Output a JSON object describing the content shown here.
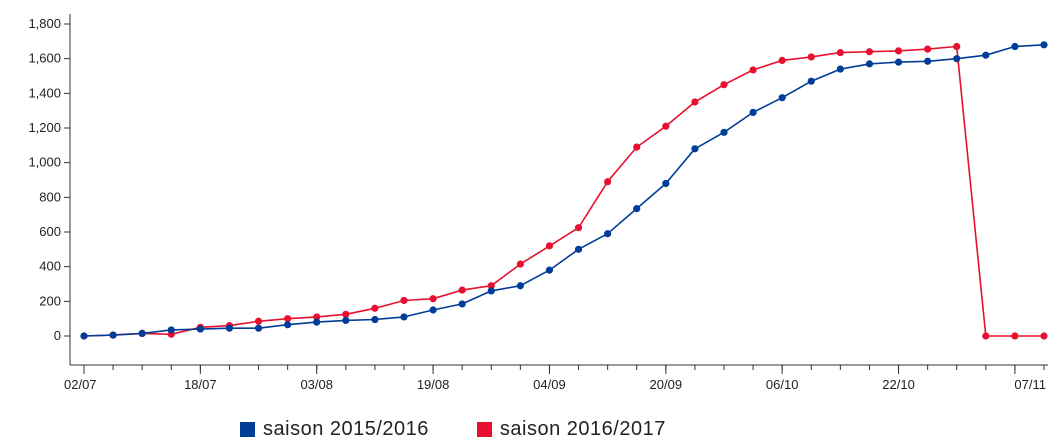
{
  "chart_data": {
    "type": "line",
    "x_tick_labels": [
      "02/07",
      "18/07",
      "03/08",
      "19/08",
      "04/09",
      "20/09",
      "06/10",
      "22/10",
      "07/11"
    ],
    "y_tick_labels": [
      "0",
      "200",
      "400",
      "600",
      "800",
      "1,000",
      "1,200",
      "1,400",
      "1,600",
      "1,800"
    ],
    "ylim": [
      0,
      1800
    ],
    "grid": false,
    "legend_position": "bottom",
    "series": [
      {
        "name": "saison 2015/2016",
        "color": "#003d99",
        "values": [
          0,
          5,
          15,
          35,
          40,
          45,
          45,
          65,
          80,
          90,
          95,
          110,
          150,
          185,
          260,
          290,
          380,
          500,
          590,
          735,
          880,
          1080,
          1175,
          1290,
          1375,
          1470,
          1540,
          1570,
          1580,
          1585,
          1600,
          1620,
          1670,
          1680
        ]
      },
      {
        "name": "saison 2016/2017",
        "color": "#e8102e",
        "values": [
          0,
          5,
          15,
          10,
          50,
          60,
          85,
          100,
          110,
          125,
          160,
          205,
          215,
          265,
          290,
          415,
          520,
          625,
          890,
          1090,
          1210,
          1350,
          1450,
          1535,
          1590,
          1610,
          1635,
          1640,
          1645,
          1655,
          1670,
          0,
          0,
          0
        ]
      }
    ]
  }
}
